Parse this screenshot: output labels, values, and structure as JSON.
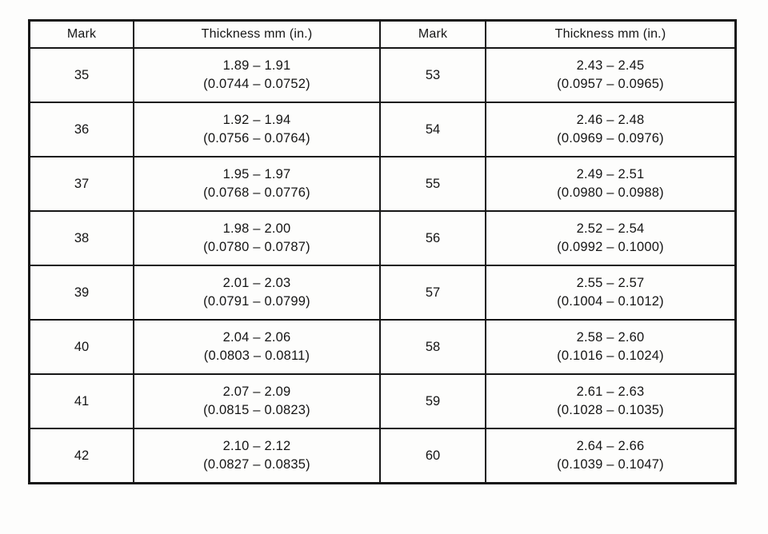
{
  "table": {
    "headers": {
      "mark_left": "Mark",
      "thickness_left": "Thickness mm (in.)",
      "mark_right": "Mark",
      "thickness_right": "Thickness mm (in.)"
    },
    "rows": [
      {
        "left_mark": "35",
        "left_mm": "1.89 – 1.91",
        "left_in": "(0.0744 – 0.0752)",
        "right_mark": "53",
        "right_mm": "2.43 – 2.45",
        "right_in": "(0.0957 – 0.0965)"
      },
      {
        "left_mark": "36",
        "left_mm": "1.92 – 1.94",
        "left_in": "(0.0756 – 0.0764)",
        "right_mark": "54",
        "right_mm": "2.46 – 2.48",
        "right_in": "(0.0969 – 0.0976)"
      },
      {
        "left_mark": "37",
        "left_mm": "1.95 – 1.97",
        "left_in": "(0.0768 – 0.0776)",
        "right_mark": "55",
        "right_mm": "2.49 – 2.51",
        "right_in": "(0.0980 – 0.0988)"
      },
      {
        "left_mark": "38",
        "left_mm": "1.98 – 2.00",
        "left_in": "(0.0780 – 0.0787)",
        "right_mark": "56",
        "right_mm": "2.52 – 2.54",
        "right_in": "(0.0992 – 0.1000)"
      },
      {
        "left_mark": "39",
        "left_mm": "2.01 – 2.03",
        "left_in": "(0.0791 – 0.0799)",
        "right_mark": "57",
        "right_mm": "2.55 – 2.57",
        "right_in": "(0.1004 – 0.1012)"
      },
      {
        "left_mark": "40",
        "left_mm": "2.04 – 2.06",
        "left_in": "(0.0803 – 0.0811)",
        "right_mark": "58",
        "right_mm": "2.58 – 2.60",
        "right_in": "(0.1016 – 0.1024)"
      },
      {
        "left_mark": "41",
        "left_mm": "2.07 – 2.09",
        "left_in": "(0.0815 – 0.0823)",
        "right_mark": "59",
        "right_mm": "2.61 – 2.63",
        "right_in": "(0.1028 – 0.1035)"
      },
      {
        "left_mark": "42",
        "left_mm": "2.10 – 2.12",
        "left_in": "(0.0827 – 0.0835)",
        "right_mark": "60",
        "right_mm": "2.64 – 2.66",
        "right_in": "(0.1039 – 0.1047)"
      }
    ]
  }
}
